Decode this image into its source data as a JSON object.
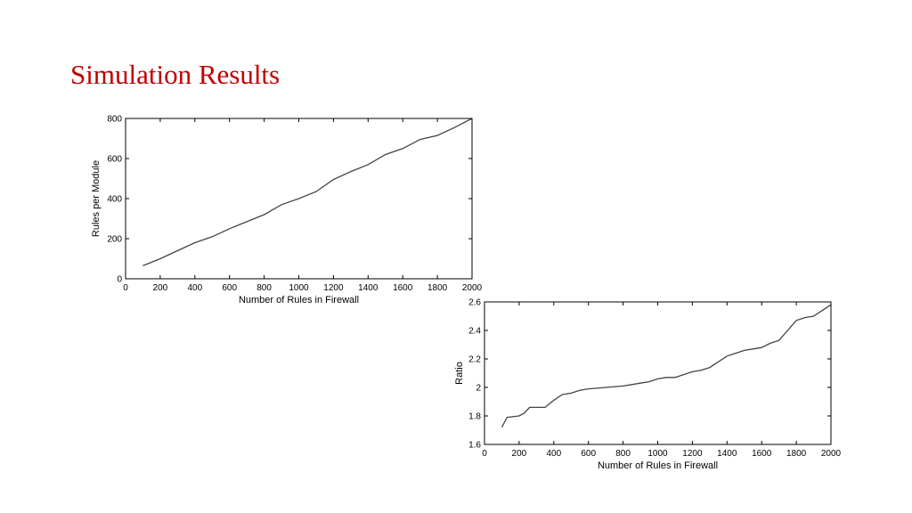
{
  "slide": {
    "title": "Simulation Results"
  },
  "chart_data": [
    {
      "type": "line",
      "xlabel": "Number of Rules in Firewall",
      "ylabel": "Rules per Module",
      "xlim": [
        0,
        2000
      ],
      "ylim": [
        0,
        800
      ],
      "xticks": [
        0,
        200,
        400,
        600,
        800,
        1000,
        1200,
        1400,
        1600,
        1800,
        2000
      ],
      "yticks": [
        0,
        200,
        400,
        600,
        800
      ],
      "grid": false,
      "series": [
        {
          "color": "#444444",
          "x": [
            100,
            200,
            300,
            400,
            500,
            600,
            700,
            800,
            900,
            1000,
            1100,
            1200,
            1300,
            1400,
            1500,
            1600,
            1700,
            1800,
            1900,
            2000
          ],
          "y": [
            65,
            100,
            140,
            180,
            210,
            250,
            285,
            320,
            370,
            400,
            435,
            495,
            535,
            570,
            620,
            650,
            695,
            715,
            755,
            800
          ]
        }
      ]
    },
    {
      "type": "line",
      "xlabel": "Number of Rules in Firewall",
      "ylabel": "Ratio",
      "xlim": [
        0,
        2000
      ],
      "ylim": [
        1.6,
        2.6
      ],
      "xticks": [
        0,
        200,
        400,
        600,
        800,
        1000,
        1200,
        1400,
        1600,
        1800,
        2000
      ],
      "yticks": [
        1.6,
        1.8,
        2,
        2.2,
        2.4,
        2.6
      ],
      "ytick_labels": [
        "1.6",
        "1.8",
        "2",
        "2.2",
        "2.4",
        "2.6"
      ],
      "grid": false,
      "series": [
        {
          "color": "#444444",
          "x": [
            100,
            130,
            200,
            230,
            260,
            300,
            350,
            400,
            450,
            500,
            550,
            600,
            700,
            800,
            850,
            900,
            950,
            1000,
            1050,
            1100,
            1150,
            1200,
            1250,
            1300,
            1350,
            1400,
            1450,
            1500,
            1550,
            1600,
            1650,
            1700,
            1750,
            1800,
            1850,
            1900,
            1950,
            2000
          ],
          "y": [
            1.72,
            1.79,
            1.8,
            1.82,
            1.86,
            1.86,
            1.86,
            1.91,
            1.95,
            1.96,
            1.98,
            1.99,
            2.0,
            2.01,
            2.02,
            2.03,
            2.04,
            2.06,
            2.07,
            2.07,
            2.09,
            2.11,
            2.12,
            2.14,
            2.18,
            2.22,
            2.24,
            2.26,
            2.27,
            2.28,
            2.31,
            2.33,
            2.4,
            2.47,
            2.49,
            2.5,
            2.54,
            2.58
          ]
        }
      ]
    }
  ]
}
